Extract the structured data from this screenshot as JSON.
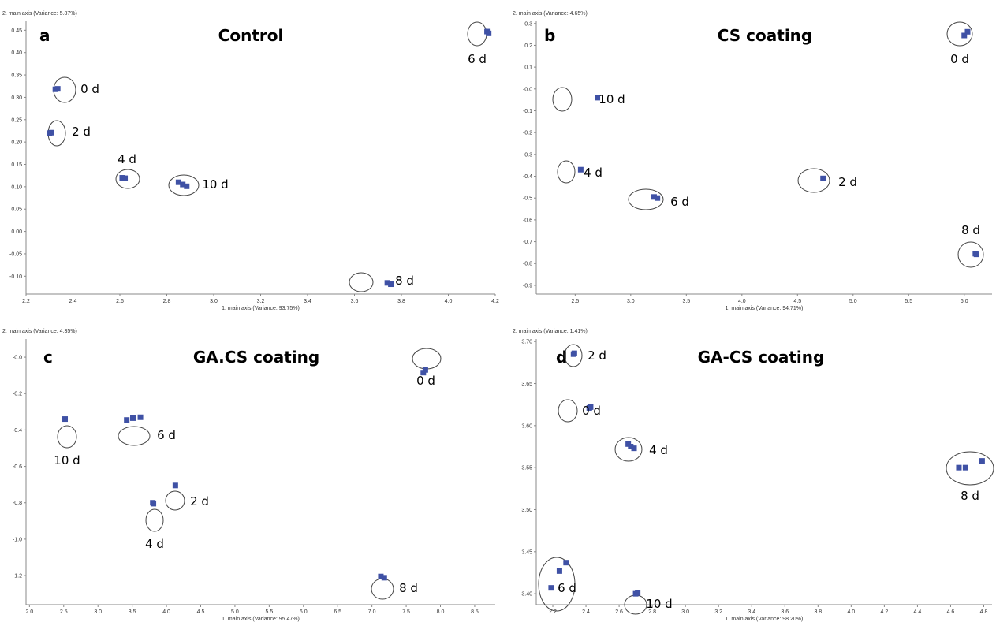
{
  "marker_color": "#3f51a5",
  "chart_data": [
    {
      "type": "scatter",
      "panel": "a",
      "title": "Control",
      "xlabel": "1. main axis (Variance: 93.75%)",
      "ylabel": "2. main axis (Variance: 5.87%)",
      "xlim": [
        2.2,
        4.2
      ],
      "ylim": [
        -0.14,
        0.47
      ],
      "xticks": [
        "2.2",
        "2.4",
        "2.6",
        "2.8",
        "3.0",
        "3.2",
        "3.4",
        "3.6",
        "3.8",
        "4.0",
        "4.2"
      ],
      "yticks": [
        "0.45",
        "0.40",
        "0.35",
        "0.30",
        "0.25",
        "0.20",
        "0.15",
        "0.10",
        "0.05",
        "0.00",
        "-0.05",
        "-0.10"
      ],
      "groups": [
        {
          "label": "0 d",
          "points": [
            [
              2.325,
              0.318
            ],
            [
              2.335,
              0.319
            ]
          ]
        },
        {
          "label": "2 d",
          "points": [
            [
              2.3,
              0.22
            ],
            [
              2.308,
              0.221
            ]
          ]
        },
        {
          "label": "4 d",
          "points": [
            [
              2.61,
              0.12
            ],
            [
              2.622,
              0.119
            ]
          ]
        },
        {
          "label": "10 d",
          "points": [
            [
              2.85,
              0.11
            ],
            [
              2.868,
              0.105
            ],
            [
              2.885,
              0.101
            ]
          ]
        },
        {
          "label": "8 d",
          "points": [
            [
              3.74,
              -0.115
            ],
            [
              3.755,
              -0.118
            ]
          ]
        },
        {
          "label": "6 d",
          "points": [
            [
              4.165,
              0.447
            ],
            [
              4.172,
              0.443
            ]
          ]
        }
      ]
    },
    {
      "type": "scatter",
      "panel": "b",
      "title": "CS coating",
      "xlabel": "1. main axis (Variance: 94.71%)",
      "ylabel": "2. main axis (Variance: 4.65%)",
      "xlim": [
        2.15,
        6.25
      ],
      "ylim": [
        -0.94,
        0.31
      ],
      "xticks": [
        "2.5",
        "3.0",
        "3.5",
        "4.0",
        "4.5",
        "5.0",
        "5.5",
        "6.0"
      ],
      "yticks": [
        "0.3",
        "0.2",
        "0.1",
        "-0.0",
        "-0.1",
        "-0.2",
        "-0.3",
        "-0.4",
        "-0.5",
        "-0.6",
        "-0.7",
        "-0.8",
        "-0.9"
      ],
      "groups": [
        {
          "label": "0 d",
          "points": [
            [
              6.0,
              0.245
            ],
            [
              6.03,
              0.262
            ]
          ]
        },
        {
          "label": "10 d",
          "points": [
            [
              2.7,
              -0.04
            ]
          ]
        },
        {
          "label": "4 d",
          "points": [
            [
              2.55,
              -0.37
            ]
          ]
        },
        {
          "label": "2 d",
          "points": [
            [
              4.73,
              -0.41
            ]
          ]
        },
        {
          "label": "6 d",
          "points": [
            [
              3.21,
              -0.495
            ],
            [
              3.24,
              -0.5
            ]
          ]
        },
        {
          "label": "8 d",
          "points": [
            [
              6.1,
              -0.755
            ],
            [
              6.11,
              -0.758
            ]
          ]
        }
      ]
    },
    {
      "type": "scatter",
      "panel": "c",
      "title": "GA.CS coating",
      "xlabel": "1. main axis (Variance: 95.47%)",
      "ylabel": "2. main axis (Variance: 4.35%)",
      "xlim": [
        1.95,
        8.8
      ],
      "ylim": [
        -1.36,
        0.1
      ],
      "xticks": [
        "2.0",
        "2.5",
        "3.0",
        "3.5",
        "4.0",
        "4.5",
        "5.0",
        "5.5",
        "6.0",
        "6.5",
        "7.0",
        "7.5",
        "8.0",
        "8.5"
      ],
      "yticks": [
        "-0.0",
        "-0.2",
        "-0.4",
        "-0.6",
        "-0.8",
        "-1.0",
        "-1.2"
      ],
      "groups": [
        {
          "label": "0 d",
          "points": [
            [
              7.75,
              -0.085
            ],
            [
              7.78,
              -0.07
            ]
          ]
        },
        {
          "label": "10 d",
          "points": [
            [
              2.52,
              -0.34
            ]
          ]
        },
        {
          "label": "6 d",
          "points": [
            [
              3.42,
              -0.345
            ],
            [
              3.51,
              -0.335
            ],
            [
              3.62,
              -0.33
            ]
          ]
        },
        {
          "label": "2 d",
          "points": [
            [
              4.13,
              -0.705
            ]
          ]
        },
        {
          "label": "4 d",
          "points": [
            [
              3.8,
              -0.8
            ],
            [
              3.81,
              -0.805
            ]
          ]
        },
        {
          "label": "8 d",
          "points": [
            [
              7.13,
              -1.205
            ],
            [
              7.18,
              -1.212
            ]
          ]
        }
      ]
    },
    {
      "type": "scatter",
      "panel": "d",
      "title": "GA-CS coating",
      "xlabel": "1. main axis (Variance: 98.20%)",
      "ylabel": "2. main axis (Variance: 1.41%)",
      "xlim": [
        2.1,
        4.85
      ],
      "ylim": [
        3.387,
        3.703
      ],
      "xticks": [
        "2.2",
        "2.4",
        "2.6",
        "2.8",
        "3.0",
        "3.2",
        "3.4",
        "3.6",
        "3.8",
        "4.0",
        "4.2",
        "4.4",
        "4.6",
        "4.8"
      ],
      "yticks": [
        "3.70",
        "3.65",
        "3.60",
        "3.55",
        "3.50",
        "3.45",
        "3.40"
      ],
      "groups": [
        {
          "label": "2 d",
          "points": [
            [
              2.325,
              3.685
            ],
            [
              2.33,
              3.686
            ]
          ]
        },
        {
          "label": "0 d",
          "points": [
            [
              2.42,
              3.621
            ],
            [
              2.428,
              3.622
            ]
          ]
        },
        {
          "label": "4 d",
          "points": [
            [
              2.655,
              3.578
            ],
            [
              2.67,
              3.575
            ],
            [
              2.69,
              3.573
            ]
          ]
        },
        {
          "label": "8 d",
          "points": [
            [
              4.65,
              3.55
            ],
            [
              4.69,
              3.55
            ],
            [
              4.79,
              3.558
            ]
          ]
        },
        {
          "label": "6 d",
          "points": [
            [
              2.19,
              3.407
            ],
            [
              2.24,
              3.427
            ],
            [
              2.28,
              3.437
            ]
          ]
        },
        {
          "label": "10 d",
          "points": [
            [
              2.7,
              3.4
            ],
            [
              2.712,
              3.401
            ]
          ]
        }
      ]
    }
  ]
}
